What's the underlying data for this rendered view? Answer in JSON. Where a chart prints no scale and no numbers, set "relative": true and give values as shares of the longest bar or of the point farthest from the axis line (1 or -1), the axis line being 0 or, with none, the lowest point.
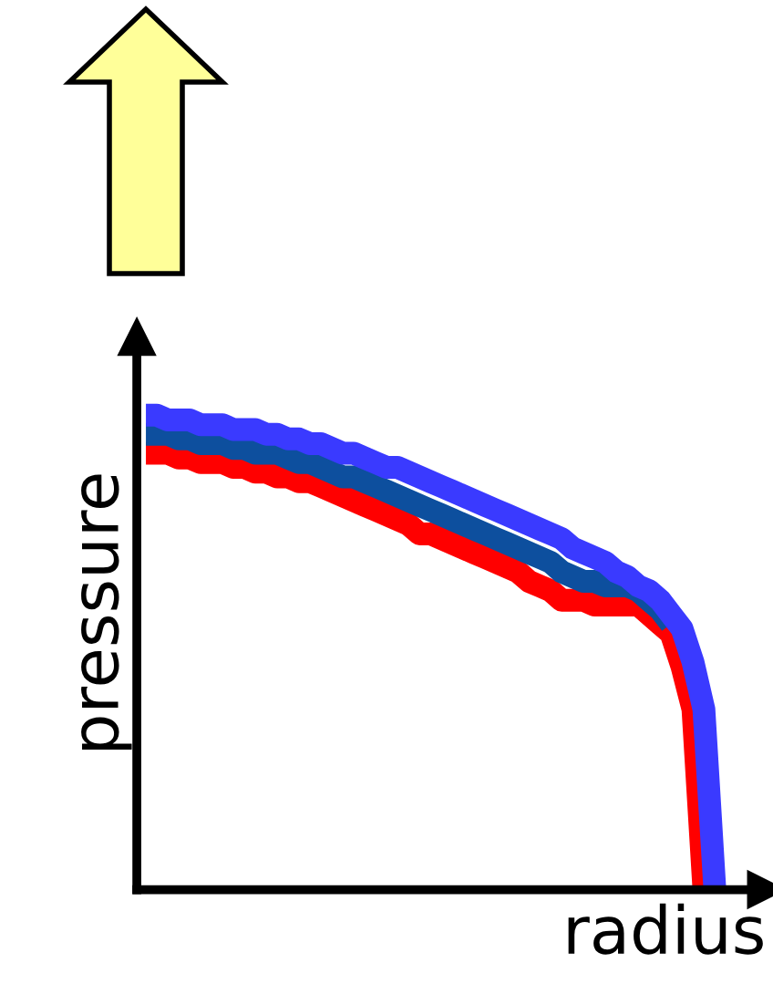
{
  "chart_data": {
    "type": "line",
    "relative": true,
    "xlabel": "radius",
    "ylabel": "pressure",
    "marker": "none",
    "line_style": "solid",
    "categories": [
      null,
      null,
      null,
      null,
      null,
      null,
      null,
      null,
      null,
      null,
      null,
      null,
      null,
      null,
      null,
      null,
      null,
      null,
      null,
      null,
      null,
      null,
      null,
      null,
      null,
      null,
      null,
      null,
      null,
      null,
      null,
      null,
      null,
      null,
      null,
      null,
      null,
      null,
      null,
      null,
      null,
      null,
      null,
      null,
      null,
      null,
      null,
      null,
      null,
      null,
      null,
      null,
      null
    ],
    "series": [
      {
        "color": "#ff0000",
        "values": [
          0.92,
          0.92,
          0.92,
          0.91,
          0.91,
          0.9,
          0.9,
          0.9,
          0.89,
          0.89,
          0.88,
          0.88,
          0.87,
          0.87,
          0.86,
          0.86,
          0.85,
          0.84,
          0.83,
          0.82,
          0.81,
          0.8,
          0.79,
          0.78,
          0.77,
          0.75,
          0.75,
          0.74,
          0.73,
          0.72,
          0.71,
          0.7,
          0.69,
          0.68,
          0.67,
          0.65,
          0.64,
          0.63,
          0.61,
          0.61,
          0.61,
          0.6,
          0.6,
          0.6,
          0.6,
          0.6,
          0.58,
          0.56,
          0.54,
          0.47,
          0.38,
          0,
          null
        ]
      },
      {
        "color": "#0d4f9e",
        "values": [
          0.96,
          0.96,
          0.96,
          0.95,
          0.95,
          0.94,
          0.94,
          0.94,
          0.93,
          0.93,
          0.92,
          0.92,
          0.92,
          0.91,
          0.9,
          0.9,
          0.89,
          0.88,
          0.87,
          0.87,
          0.86,
          0.85,
          0.84,
          0.83,
          0.82,
          0.81,
          0.8,
          0.79,
          0.78,
          0.77,
          0.76,
          0.75,
          0.74,
          0.73,
          0.72,
          0.71,
          0.7,
          0.69,
          0.67,
          0.66,
          0.65,
          0.65,
          0.64,
          0.64,
          0.64,
          0.63,
          0.61,
          0.59,
          0.56,
          null,
          null,
          null,
          null
        ]
      },
      {
        "color": "#3a3aff",
        "values": [
          1.0,
          1.0,
          0.99,
          0.99,
          0.99,
          0.98,
          0.98,
          0.98,
          0.97,
          0.97,
          0.97,
          0.96,
          0.96,
          0.95,
          0.95,
          0.94,
          0.94,
          0.93,
          0.92,
          0.92,
          0.91,
          0.9,
          0.89,
          0.89,
          0.88,
          0.87,
          0.86,
          0.85,
          0.84,
          0.83,
          0.82,
          0.81,
          0.8,
          0.79,
          0.78,
          0.77,
          0.76,
          0.75,
          0.74,
          0.72,
          0.71,
          0.7,
          0.69,
          0.67,
          0.66,
          0.64,
          0.63,
          0.61,
          0.58,
          0.55,
          0.48,
          0.38,
          0
        ]
      }
    ]
  }
}
